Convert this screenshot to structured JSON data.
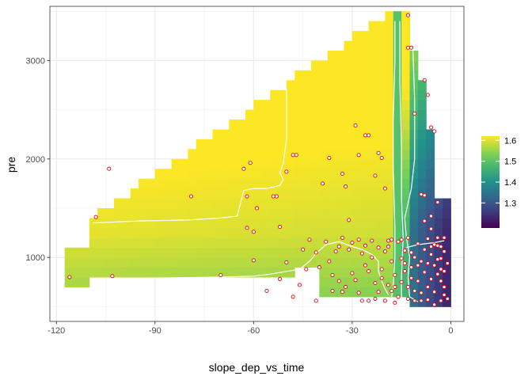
{
  "chart_data": {
    "type": "heatmap",
    "xlabel": "slope_dep_vs_time",
    "ylabel": "pre",
    "xlim": [
      -122,
      4
    ],
    "ylim": [
      350,
      3550
    ],
    "x_ticks": [
      -120,
      -90,
      -60,
      -30,
      0
    ],
    "x_tick_labels": [
      "-120",
      "-90",
      "-60",
      "-30",
      "0"
    ],
    "y_ticks": [
      1000,
      2000,
      3000
    ],
    "y_tick_labels": [
      "1000",
      "2000",
      "3000"
    ],
    "grid": true,
    "legend": {
      "position": "right",
      "range": [
        1.18,
        1.62
      ],
      "ticks": [
        1.3,
        1.4,
        1.5,
        1.6
      ],
      "tick_labels": [
        "1.3",
        "1.4",
        "1.5",
        "1.6"
      ],
      "colors": [
        "#440154",
        "#3b528b",
        "#21918c",
        "#5ec962",
        "#fde725"
      ]
    },
    "contour_color": "#ffffff",
    "point_fill": "#ffffff",
    "point_stroke": "#e8000b",
    "points": [
      [
        -116,
        800
      ],
      [
        -103,
        810
      ],
      [
        -108,
        1410
      ],
      [
        -104,
        1900
      ],
      [
        -79,
        1620
      ],
      [
        -70,
        820
      ],
      [
        -63,
        1900
      ],
      [
        -61,
        1960
      ],
      [
        -62,
        1620
      ],
      [
        -62,
        1300
      ],
      [
        -60,
        1260
      ],
      [
        -60,
        970
      ],
      [
        -59,
        1500
      ],
      [
        -54,
        1620
      ],
      [
        -53,
        1620
      ],
      [
        -52,
        1310
      ],
      [
        -50,
        1870
      ],
      [
        -48,
        2040
      ],
      [
        -47,
        2040
      ],
      [
        -39,
        1750
      ],
      [
        -37,
        2010
      ],
      [
        -33,
        1850
      ],
      [
        -33,
        1200
      ],
      [
        -32,
        1720
      ],
      [
        -31,
        1380
      ],
      [
        -29,
        2340
      ],
      [
        -28,
        2040
      ],
      [
        -26,
        2240
      ],
      [
        -25,
        2240
      ],
      [
        -23,
        1830
      ],
      [
        -22,
        2060
      ],
      [
        -21,
        2010
      ],
      [
        -20,
        1700
      ],
      [
        -19,
        1170
      ],
      [
        -13,
        3460
      ],
      [
        -13,
        3130
      ],
      [
        -12,
        3130
      ],
      [
        -11,
        2460
      ],
      [
        -8,
        2800
      ],
      [
        -7,
        2650
      ],
      [
        -6,
        2320
      ],
      [
        -5,
        2280
      ],
      [
        -6,
        1290
      ],
      [
        -4,
        1200
      ],
      [
        -3,
        1110
      ],
      [
        -9,
        1640
      ],
      [
        -8,
        1630
      ],
      [
        -6,
        1420
      ],
      [
        -4,
        1560
      ],
      [
        -45,
        1080
      ],
      [
        -43,
        1180
      ],
      [
        -41,
        1050
      ],
      [
        -40,
        900
      ],
      [
        -38,
        1160
      ],
      [
        -37,
        960
      ],
      [
        -36,
        820
      ],
      [
        -35,
        1060
      ],
      [
        -34,
        760
      ],
      [
        -33,
        650
      ],
      [
        -31,
        1080
      ],
      [
        -30,
        840
      ],
      [
        -29,
        770
      ],
      [
        -28,
        640
      ],
      [
        -27,
        1040
      ],
      [
        -26,
        920
      ],
      [
        -25,
        560
      ],
      [
        -24,
        1000
      ],
      [
        -23,
        740
      ],
      [
        -22,
        650
      ],
      [
        -21,
        880
      ],
      [
        -20,
        560
      ],
      [
        -19,
        1110
      ],
      [
        -18,
        660
      ],
      [
        -18,
        960
      ],
      [
        -17,
        820
      ],
      [
        -16,
        1160
      ],
      [
        -16,
        600
      ],
      [
        -15,
        990
      ],
      [
        -15,
        750
      ],
      [
        -14,
        1070
      ],
      [
        -14,
        860
      ],
      [
        -13,
        700
      ],
      [
        -12,
        900
      ],
      [
        -12,
        1050
      ],
      [
        -11,
        560
      ],
      [
        -10,
        760
      ],
      [
        -10,
        1140
      ],
      [
        -9,
        960
      ],
      [
        -9,
        640
      ],
      [
        -8,
        1080
      ],
      [
        -8,
        850
      ],
      [
        -7,
        1190
      ],
      [
        -7,
        570
      ],
      [
        -6,
        780
      ],
      [
        -6,
        1030
      ],
      [
        -5,
        920
      ],
      [
        -5,
        650
      ],
      [
        -4,
        1120
      ],
      [
        -4,
        830
      ],
      [
        -3,
        560
      ],
      [
        -3,
        990
      ],
      [
        -2,
        700
      ],
      [
        -2,
        1060
      ],
      [
        -2,
        620
      ],
      [
        -44,
        880
      ],
      [
        -50,
        950
      ],
      [
        -52,
        780
      ],
      [
        -56,
        660
      ],
      [
        -46,
        720
      ],
      [
        -48,
        600
      ],
      [
        -41,
        560
      ],
      [
        -36,
        660
      ],
      [
        -32,
        700
      ],
      [
        -27,
        560
      ],
      [
        -23,
        580
      ],
      [
        -19,
        720
      ],
      [
        -17,
        540
      ],
      [
        -13,
        580
      ],
      [
        -11,
        660
      ],
      [
        -9,
        560
      ],
      [
        -7,
        940
      ],
      [
        -5,
        1130
      ],
      [
        -3,
        760
      ],
      [
        -2,
        860
      ],
      [
        -1,
        580
      ],
      [
        -8,
        1370
      ],
      [
        -6,
        1110
      ],
      [
        -4,
        980
      ],
      [
        -3,
        880
      ],
      [
        -12,
        790
      ],
      [
        -11,
        1000
      ],
      [
        -14,
        940
      ],
      [
        -15,
        1180
      ],
      [
        -18,
        1180
      ],
      [
        -20,
        1060
      ],
      [
        -22,
        1100
      ],
      [
        -24,
        1170
      ],
      [
        -26,
        1120
      ],
      [
        -28,
        1180
      ],
      [
        -30,
        1150
      ],
      [
        -34,
        1110
      ],
      [
        -25,
        860
      ],
      [
        -21,
        790
      ],
      [
        -17,
        700
      ],
      [
        -13,
        1200
      ],
      [
        -10,
        920
      ],
      [
        -2,
        1200
      ],
      [
        -1,
        940
      ],
      [
        -5,
        520
      ],
      [
        -7,
        700
      ]
    ]
  }
}
